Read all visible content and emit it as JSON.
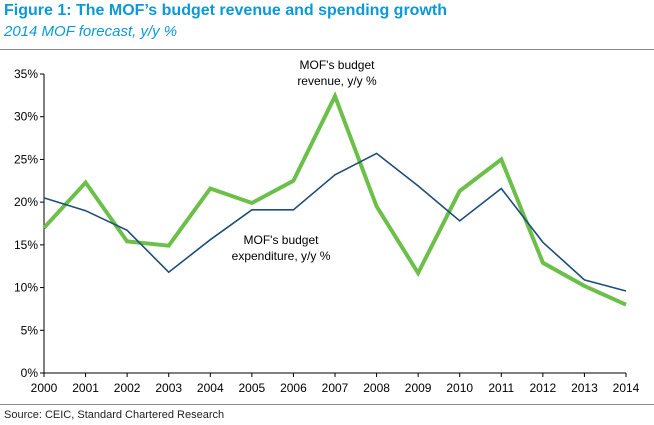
{
  "header": {
    "title": "Figure 1: The MOF’s budget revenue and spending growth",
    "subtitle": "2014 MOF forecast, y/y %"
  },
  "footer": {
    "source": "Source: CEIC, Standard Chartered Research"
  },
  "chart_data": {
    "type": "line",
    "title": "Figure 1: The MOF’s budget revenue and spending growth",
    "subtitle": "2014 MOF forecast, y/y %",
    "xlabel": "",
    "ylabel": "",
    "x": [
      "2000",
      "2001",
      "2002",
      "2003",
      "2004",
      "2005",
      "2006",
      "2007",
      "2008",
      "2009",
      "2010",
      "2011",
      "2012",
      "2013",
      "2014"
    ],
    "ylim": [
      0,
      35
    ],
    "yticks": [
      0,
      5,
      10,
      15,
      20,
      25,
      30,
      35
    ],
    "ytick_labels": [
      "0%",
      "5%",
      "10%",
      "15%",
      "20%",
      "25%",
      "30%",
      "35%"
    ],
    "grid": false,
    "series": [
      {
        "name": "MOF's budget revenue, y/y %",
        "color": "#6cc04a",
        "values": [
          17.0,
          22.3,
          15.4,
          14.9,
          21.6,
          19.9,
          22.5,
          32.4,
          19.5,
          11.7,
          21.3,
          25.0,
          12.9,
          10.2,
          8.0
        ]
      },
      {
        "name": "MOF's budget expenditure, y/y %",
        "color": "#1f4e79",
        "values": [
          20.5,
          19.0,
          16.7,
          11.8,
          15.6,
          19.1,
          19.1,
          23.2,
          25.7,
          21.9,
          17.8,
          21.6,
          15.3,
          10.9,
          9.6
        ]
      }
    ],
    "annotations": [
      {
        "series": 0,
        "lines": [
          "MOF's budget",
          "revenue, y/y %"
        ]
      },
      {
        "series": 1,
        "lines": [
          "MOF's budget",
          "expenditure, y/y %"
        ]
      }
    ]
  }
}
